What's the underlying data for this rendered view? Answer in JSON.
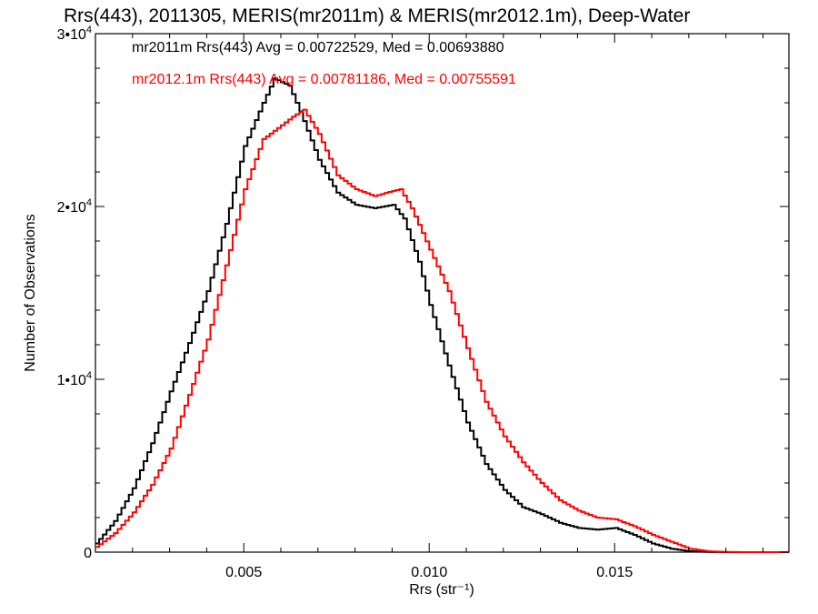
{
  "chart_data": {
    "type": "line",
    "step": true,
    "title": "Rrs(443), 2011305, MERIS(mr2011m) & MERIS(mr2012.1m), Deep-Water",
    "xlabel": "Rrs (str⁻¹)",
    "ylabel": "Number of Observations",
    "xlim": [
      0.001,
      0.0197
    ],
    "ylim": [
      0,
      30000
    ],
    "x_ticks": [
      {
        "value": 0.005,
        "label": "0.005"
      },
      {
        "value": 0.01,
        "label": "0.010"
      },
      {
        "value": 0.015,
        "label": "0.015"
      }
    ],
    "y_ticks": [
      {
        "value": 0,
        "label": "0"
      },
      {
        "value": 10000,
        "label": "1•10⁴"
      },
      {
        "value": 20000,
        "label": "2•10⁴"
      },
      {
        "value": 30000,
        "label": "3•10⁴"
      }
    ],
    "grid": false,
    "legend_position": "top-left",
    "annotations": [
      {
        "text": "mr2011m Rrs(443) Avg = 0.00722529, Med = 0.00693880",
        "color": "#000000"
      },
      {
        "text": "mr2012.1m Rrs(443) Avg = 0.00781186, Med = 0.00755591",
        "color": "#ff0000"
      }
    ],
    "series": [
      {
        "color": "#000000",
        "x": [
          0.001,
          0.0015,
          0.002,
          0.0025,
          0.003,
          0.0035,
          0.004,
          0.0045,
          0.005,
          0.0055,
          0.0058,
          0.0062,
          0.0065,
          0.007,
          0.0075,
          0.008,
          0.0085,
          0.009,
          0.0093,
          0.0097,
          0.01,
          0.0105,
          0.011,
          0.0115,
          0.012,
          0.0125,
          0.013,
          0.0135,
          0.014,
          0.0145,
          0.015,
          0.0155,
          0.016,
          0.0165,
          0.017,
          0.0175,
          0.018,
          0.0197
        ],
        "y": [
          500,
          1800,
          3700,
          6300,
          9300,
          12100,
          15100,
          19000,
          23500,
          26000,
          27400,
          27000,
          25500,
          22700,
          20800,
          20100,
          19900,
          20100,
          19300,
          16800,
          14300,
          10800,
          7500,
          5100,
          3600,
          2600,
          2200,
          1700,
          1400,
          1300,
          1400,
          1000,
          500,
          200,
          50,
          10,
          0,
          0
        ]
      },
      {
        "color": "#ff0000",
        "x": [
          0.001,
          0.0015,
          0.002,
          0.0025,
          0.003,
          0.0035,
          0.004,
          0.0045,
          0.005,
          0.0055,
          0.006,
          0.0063,
          0.0066,
          0.007,
          0.0075,
          0.008,
          0.0085,
          0.009,
          0.0092,
          0.0095,
          0.01,
          0.0105,
          0.011,
          0.0115,
          0.012,
          0.0125,
          0.013,
          0.0135,
          0.014,
          0.0145,
          0.015,
          0.0155,
          0.016,
          0.0165,
          0.017,
          0.0175,
          0.018,
          0.0185,
          0.0197
        ],
        "y": [
          300,
          1100,
          2300,
          3900,
          6000,
          9100,
          12300,
          16600,
          21000,
          23900,
          24700,
          25200,
          25600,
          24200,
          21800,
          21000,
          20600,
          20900,
          21000,
          19900,
          17500,
          15100,
          11800,
          8700,
          6700,
          5200,
          4000,
          3000,
          2400,
          2000,
          1900,
          1500,
          1000,
          600,
          200,
          50,
          10,
          0,
          0
        ]
      }
    ]
  }
}
